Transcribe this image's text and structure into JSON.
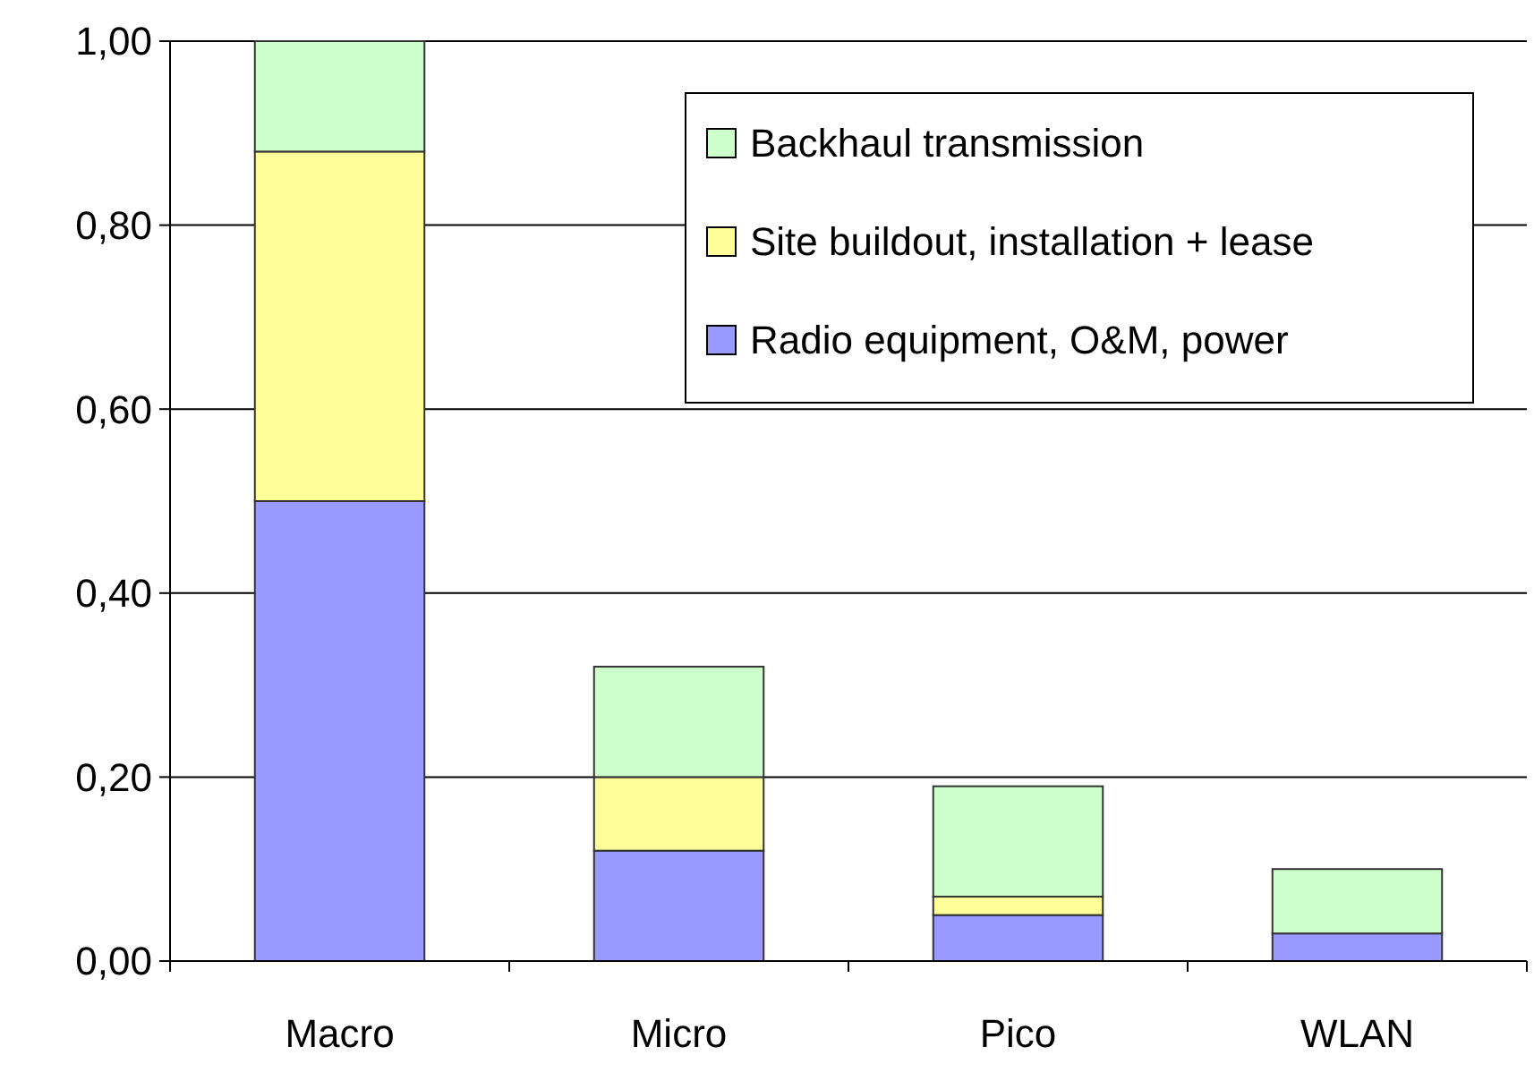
{
  "chart_data": {
    "type": "bar",
    "stacked": true,
    "categories": [
      "Macro",
      "Micro",
      "Pico",
      "WLAN"
    ],
    "series": [
      {
        "name": "Radio equipment, O&M, power",
        "color": "#9999ff",
        "values": [
          0.5,
          0.12,
          0.05,
          0.03
        ]
      },
      {
        "name": "Site buildout, installation + lease",
        "color": "#ffff99",
        "values": [
          0.38,
          0.08,
          0.02,
          0
        ]
      },
      {
        "name": "Backhaul transmission",
        "color": "#ccffcc",
        "values": [
          0.12,
          0.12,
          0.12,
          0.07
        ]
      }
    ],
    "ylim": [
      0,
      1
    ],
    "yticks": [
      {
        "value": 0,
        "label": "0,00"
      },
      {
        "value": 0.2,
        "label": "0,20"
      },
      {
        "value": 0.4,
        "label": "0,40"
      },
      {
        "value": 0.6,
        "label": "0,60"
      },
      {
        "value": 0.8,
        "label": "0,80"
      },
      {
        "value": 1,
        "label": "1,00"
      }
    ],
    "grid": "y",
    "legend": "top right"
  }
}
